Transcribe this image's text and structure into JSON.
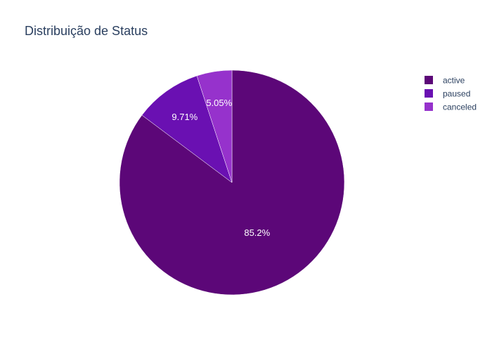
{
  "chart_data": {
    "type": "pie",
    "title": "Distribuição de Status",
    "slices": [
      {
        "label": "active",
        "value": 85.2,
        "display": "85.2%",
        "color": "#5c0778"
      },
      {
        "label": "paused",
        "value": 9.71,
        "display": "9.71%",
        "color": "#6a10b2"
      },
      {
        "label": "canceled",
        "value": 5.05,
        "display": "5.05%",
        "color": "#9632cc"
      }
    ],
    "legend_position": "top-right",
    "direction": "clockwise",
    "start_angle": "12 o'clock"
  }
}
